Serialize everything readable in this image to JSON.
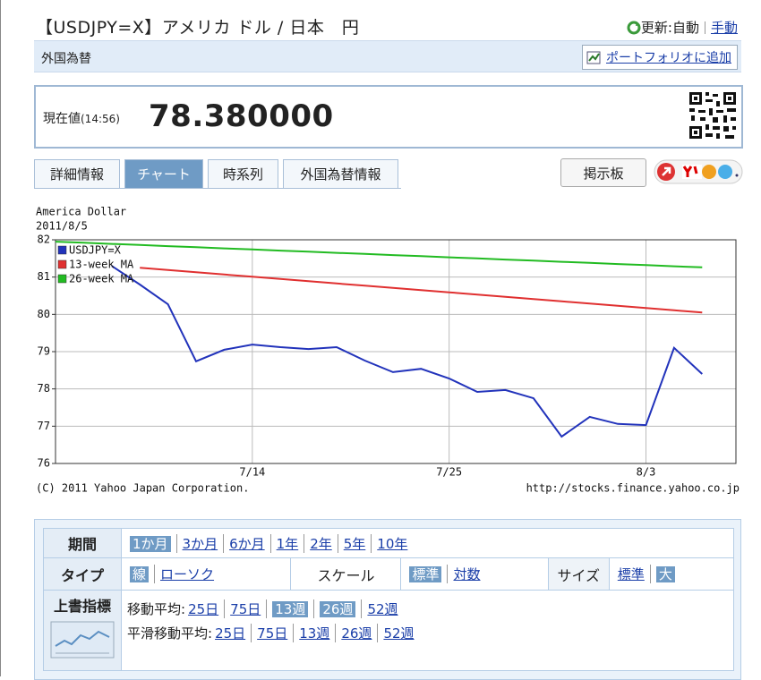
{
  "header": {
    "title": "【USDJPY=X】アメリカ ドル / 日本　円",
    "update_label": "更新:自動",
    "manual_link": "手動"
  },
  "category_bar": {
    "label": "外国為替",
    "portfolio_link": "ポートフォリオに追加"
  },
  "quote": {
    "label": "現在値",
    "time": "(14:56)",
    "price": "78.380000"
  },
  "tabs": [
    "詳細情報",
    "チャート",
    "時系列",
    "外国為替情報"
  ],
  "active_tab": 1,
  "board_button": "掲示板",
  "chart_data": {
    "type": "line",
    "title": "America Dollar",
    "subtitle": "2011/8/5",
    "categories": [
      null,
      null,
      null,
      null,
      null,
      null,
      null,
      "7/14",
      null,
      null,
      null,
      null,
      null,
      null,
      "7/25",
      null,
      null,
      null,
      null,
      null,
      null,
      "8/3",
      null,
      null
    ],
    "series": [
      {
        "name": "USDJPY=X",
        "color": "#2233bb",
        "values": [
          null,
          null,
          81.3,
          80.8,
          80.27,
          78.74,
          79.05,
          79.19,
          79.12,
          79.07,
          79.12,
          78.76,
          78.45,
          78.54,
          78.28,
          77.92,
          77.97,
          77.75,
          76.72,
          77.25,
          77.06,
          77.03,
          79.1,
          78.4
        ]
      },
      {
        "name": "13-week MA",
        "color": "#e03030",
        "values": [
          null,
          null,
          null,
          81.25,
          81.19,
          81.13,
          81.07,
          81.01,
          80.95,
          80.89,
          80.83,
          80.77,
          80.71,
          80.65,
          80.59,
          80.53,
          80.47,
          80.41,
          80.35,
          80.29,
          80.23,
          80.17,
          80.11,
          80.05
        ]
      },
      {
        "name": "26-week MA",
        "color": "#22bb22",
        "values": [
          81.95,
          81.92,
          81.89,
          81.86,
          81.83,
          81.8,
          81.77,
          81.74,
          81.71,
          81.68,
          81.65,
          81.62,
          81.59,
          81.56,
          81.53,
          81.5,
          81.47,
          81.44,
          81.41,
          81.38,
          81.35,
          81.32,
          81.29,
          81.26
        ]
      }
    ],
    "ylim": [
      76,
      82
    ],
    "yticks": [
      76,
      77,
      78,
      79,
      80,
      81,
      82
    ],
    "grid": true,
    "copyright": "(C) 2011 Yahoo Japan Corporation.",
    "source": "http://stocks.finance.yahoo.co.jp"
  },
  "options": {
    "period": {
      "label": "期間",
      "items": [
        "1か月",
        "3か月",
        "6か月",
        "1年",
        "2年",
        "5年",
        "10年"
      ],
      "selected": [
        0
      ]
    },
    "type": {
      "label": "タイプ",
      "items": [
        "線",
        "ローソク"
      ],
      "selected": [
        0
      ]
    },
    "scale": {
      "label": "スケール",
      "items": [
        "標準",
        "対数"
      ],
      "selected": [
        0
      ]
    },
    "size": {
      "label": "サイズ",
      "items": [
        "標準",
        "大"
      ],
      "selected": [
        1
      ]
    },
    "overlay": {
      "label": "上書指標",
      "rows": [
        {
          "label": "移動平均:",
          "items": [
            "25日",
            "75日",
            "13週",
            "26週",
            "52週"
          ],
          "selected": [
            2,
            3
          ]
        },
        {
          "label": "平滑移動平均:",
          "items": [
            "25日",
            "75日",
            "13週",
            "26週",
            "52週"
          ],
          "selected": []
        }
      ]
    }
  }
}
